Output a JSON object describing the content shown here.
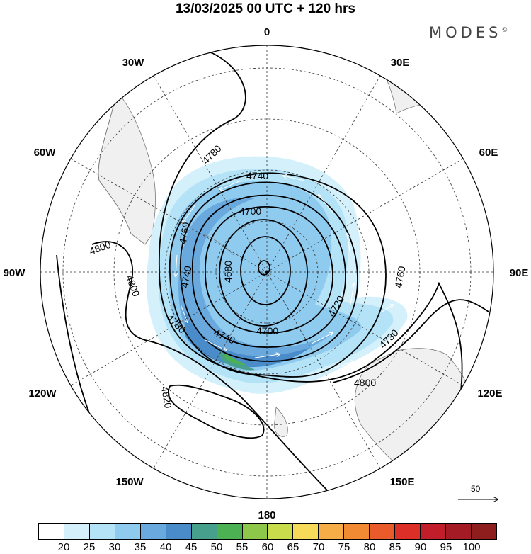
{
  "title": "13/03/2025  00 UTC  + 120 hrs",
  "brand": "MODES",
  "brand_mark": "©",
  "map": {
    "projection": "south-polar-stereographic",
    "longitude_labels": [
      {
        "text": "0",
        "deg": 0
      },
      {
        "text": "30E",
        "deg": 30
      },
      {
        "text": "60E",
        "deg": 60
      },
      {
        "text": "90E",
        "deg": 90
      },
      {
        "text": "120E",
        "deg": 120
      },
      {
        "text": "150E",
        "deg": 150
      },
      {
        "text": "180",
        "deg": 180
      },
      {
        "text": "150W",
        "deg": -150
      },
      {
        "text": "120W",
        "deg": -120
      },
      {
        "text": "90W",
        "deg": -90
      },
      {
        "text": "60W",
        "deg": -60
      },
      {
        "text": "30W",
        "deg": -30
      }
    ],
    "contour_labels": [
      "4780",
      "4740",
      "4700",
      "4760",
      "4680",
      "4740",
      "4720",
      "4760",
      "4700",
      "4740",
      "4780",
      "4730",
      "4800",
      "4800",
      "4800",
      "4820"
    ],
    "reference_vector_value": "50"
  },
  "colorbar": {
    "colors": [
      "#ffffff",
      "#d3f0fb",
      "#b4e3f7",
      "#8fcbef",
      "#6aa9de",
      "#4a8cc9",
      "#47a08c",
      "#4cb153",
      "#8ec84a",
      "#c8dc4c",
      "#f6da5a",
      "#f7ad47",
      "#f28a34",
      "#ea5b2b",
      "#dc2f28",
      "#c11d2a",
      "#a41b25",
      "#8e1d1e"
    ],
    "labels": [
      "20",
      "25",
      "30",
      "35",
      "40",
      "45",
      "50",
      "55",
      "60",
      "65",
      "70",
      "75",
      "80",
      "85",
      "90",
      "95",
      "100"
    ]
  },
  "colors": {
    "land": "#f0f0f0",
    "coast": "#777777",
    "contour": "#000000",
    "vector": "#ffffff"
  }
}
